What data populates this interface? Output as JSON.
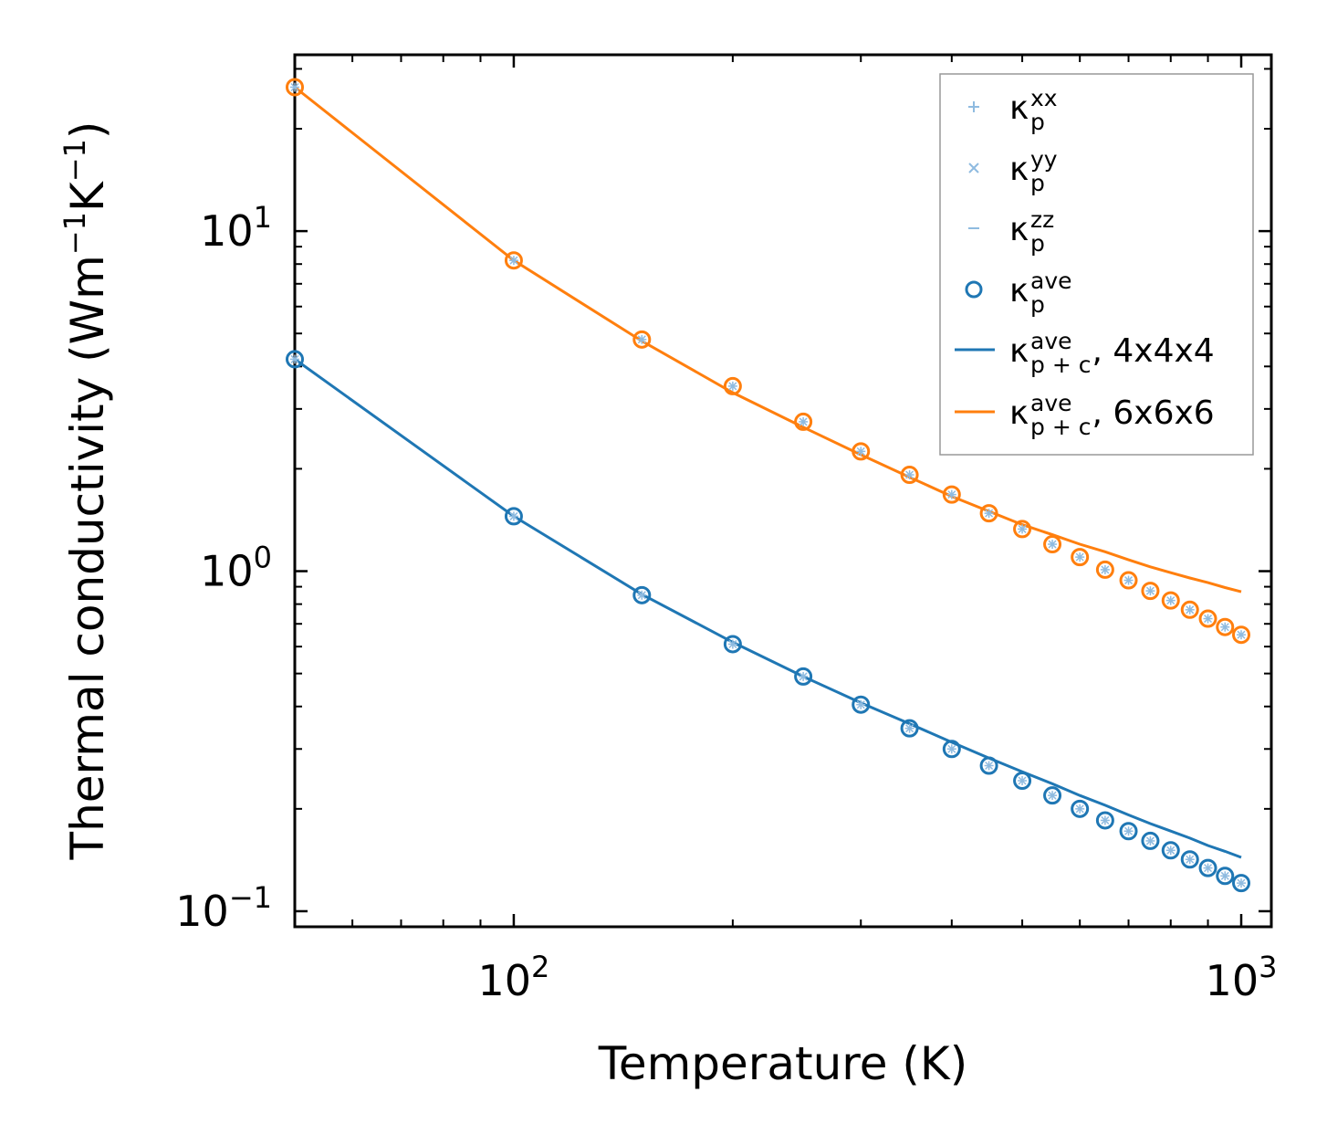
{
  "chart_data": {
    "type": "line",
    "xscale": "log",
    "yscale": "log",
    "xlabel": "Temperature (K)",
    "ylabel": {
      "base": "Thermal conductivity (Wm",
      "exp1": "−1",
      "mid": "K",
      "exp2": "−1",
      "close": ")"
    },
    "xlim": [
      50,
      1100
    ],
    "ylim": [
      0.09,
      33
    ],
    "xticks": [
      {
        "base": "10",
        "exp": "2",
        "value": 100
      },
      {
        "base": "10",
        "exp": "3",
        "value": 1000
      }
    ],
    "yticks": [
      {
        "base": "10",
        "exp": "−1",
        "value": 0.1
      },
      {
        "base": "10",
        "exp": "0",
        "value": 1
      },
      {
        "base": "10",
        "exp": "1",
        "value": 10
      }
    ],
    "x": [
      50,
      100,
      150,
      200,
      250,
      300,
      350,
      400,
      450,
      500,
      550,
      600,
      650,
      700,
      750,
      800,
      850,
      900,
      950,
      1000
    ],
    "series": [
      {
        "name": "4x4x4",
        "color": "#1f77b4",
        "points_ave": [
          4.2,
          1.45,
          0.85,
          0.61,
          0.49,
          0.405,
          0.345,
          0.3,
          0.268,
          0.242,
          0.219,
          0.2,
          0.185,
          0.172,
          0.161,
          0.151,
          0.142,
          0.134,
          0.127,
          0.121
        ],
        "line_pc": [
          4.2,
          1.45,
          0.855,
          0.618,
          0.49,
          0.41,
          0.356,
          0.314,
          0.282,
          0.257,
          0.237,
          0.219,
          0.205,
          0.192,
          0.181,
          0.172,
          0.164,
          0.156,
          0.15,
          0.144
        ]
      },
      {
        "name": "6x6x6",
        "color": "#ff7f0e",
        "points_ave": [
          26.5,
          8.2,
          4.8,
          3.5,
          2.75,
          2.25,
          1.92,
          1.68,
          1.48,
          1.33,
          1.2,
          1.1,
          1.01,
          0.94,
          0.875,
          0.82,
          0.77,
          0.725,
          0.685,
          0.65
        ],
        "line_pc": [
          26.5,
          8.2,
          4.75,
          3.35,
          2.65,
          2.2,
          1.89,
          1.66,
          1.5,
          1.37,
          1.28,
          1.2,
          1.14,
          1.08,
          1.03,
          0.99,
          0.955,
          0.925,
          0.895,
          0.87
        ]
      }
    ],
    "legend_position": "top-right",
    "legend": [
      {
        "marker": "plus",
        "symbol": "κ",
        "sub": "p",
        "sup": "xx",
        "suffix": ""
      },
      {
        "marker": "cross",
        "symbol": "κ",
        "sub": "p",
        "sup": "yy",
        "suffix": ""
      },
      {
        "marker": "dash",
        "symbol": "κ",
        "sub": "p",
        "sup": "zz",
        "suffix": ""
      },
      {
        "marker": "circle",
        "symbol": "κ",
        "sub": "p",
        "sup": "ave",
        "suffix": ""
      },
      {
        "marker": "line-blue",
        "symbol": "κ",
        "sub": "p + c",
        "sup": "ave",
        "suffix": ", 4x4x4"
      },
      {
        "marker": "line-orange",
        "symbol": "κ",
        "sub": "p + c",
        "sup": "ave",
        "suffix": ", 6x6x6"
      }
    ],
    "colors": {
      "light_marker": "#8fbbe0",
      "blue": "#1f77b4",
      "orange": "#ff7f0e"
    }
  }
}
